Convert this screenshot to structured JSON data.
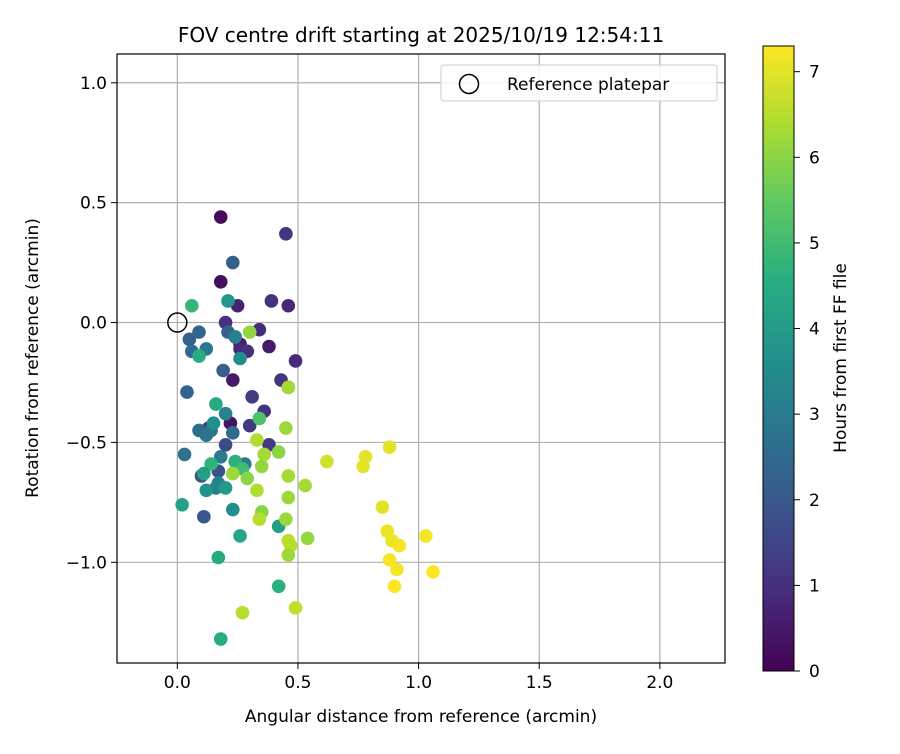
{
  "chart_data": {
    "type": "scatter",
    "title": "FOV centre drift starting at 2025/10/19 12:54:11",
    "xlabel": "Angular distance from reference (arcmin)",
    "ylabel": "Rotation from reference (arcmin)",
    "xlim": [
      -0.25,
      2.27
    ],
    "ylim": [
      -1.42,
      1.12
    ],
    "xticks": [
      0.0,
      0.5,
      1.0,
      1.5,
      2.0
    ],
    "xtick_labels": [
      "0.0",
      "0.5",
      "1.0",
      "1.5",
      "2.0"
    ],
    "yticks": [
      1.0,
      0.5,
      0.0,
      -0.5,
      -1.0
    ],
    "ytick_labels": [
      "1.0",
      "0.5",
      "0.0",
      "−0.5",
      "−1.0"
    ],
    "grid": true,
    "colormap": "viridis",
    "colorbar": {
      "label": "Hours from first FF file",
      "range": [
        0,
        7.3
      ],
      "ticks": [
        0,
        1,
        2,
        3,
        4,
        5,
        6,
        7
      ],
      "tick_labels": [
        "0",
        "1",
        "2",
        "3",
        "4",
        "5",
        "6",
        "7"
      ]
    },
    "legend": {
      "position": "top-right",
      "entries": [
        {
          "label": "Reference platepar",
          "marker": "open-circle"
        }
      ]
    },
    "reference_point": {
      "x": 0.0,
      "y": 0.0
    },
    "points": [
      {
        "x": 0.18,
        "y": 0.44,
        "h": 0.2
      },
      {
        "x": 0.18,
        "y": 0.17,
        "h": 0.3
      },
      {
        "x": 0.22,
        "y": -0.42,
        "h": 0.4
      },
      {
        "x": 0.25,
        "y": 0.07,
        "h": 0.7
      },
      {
        "x": 0.26,
        "y": -0.09,
        "h": 0.6
      },
      {
        "x": 0.23,
        "y": -0.24,
        "h": 0.5
      },
      {
        "x": 0.26,
        "y": -0.11,
        "h": 0.8
      },
      {
        "x": 0.34,
        "y": -0.03,
        "h": 0.9
      },
      {
        "x": 0.38,
        "y": -0.1,
        "h": 0.5
      },
      {
        "x": 0.45,
        "y": 0.37,
        "h": 1.1
      },
      {
        "x": 0.46,
        "y": 0.07,
        "h": 0.8
      },
      {
        "x": 0.39,
        "y": 0.09,
        "h": 1.0
      },
      {
        "x": 0.29,
        "y": -0.12,
        "h": 1.0
      },
      {
        "x": 0.2,
        "y": 0.0,
        "h": 1.0
      },
      {
        "x": 0.49,
        "y": -0.16,
        "h": 0.9
      },
      {
        "x": 0.46,
        "y": -0.27,
        "h": 1.2
      },
      {
        "x": 0.43,
        "y": -0.24,
        "h": 1.1
      },
      {
        "x": 0.36,
        "y": -0.37,
        "h": 1.0
      },
      {
        "x": 0.3,
        "y": -0.43,
        "h": 1.2
      },
      {
        "x": 0.31,
        "y": -0.31,
        "h": 1.3
      },
      {
        "x": 0.38,
        "y": -0.51,
        "h": 1.2
      },
      {
        "x": 0.13,
        "y": -0.44,
        "h": 1.4
      },
      {
        "x": 0.2,
        "y": -0.51,
        "h": 1.6
      },
      {
        "x": 0.1,
        "y": -0.64,
        "h": 1.9
      },
      {
        "x": 0.11,
        "y": -0.81,
        "h": 2.0
      },
      {
        "x": 0.17,
        "y": -0.62,
        "h": 1.8
      },
      {
        "x": 0.23,
        "y": 0.25,
        "h": 2.2
      },
      {
        "x": 0.21,
        "y": -0.04,
        "h": 2.3
      },
      {
        "x": 0.19,
        "y": -0.2,
        "h": 2.2
      },
      {
        "x": 0.05,
        "y": -0.07,
        "h": 2.2
      },
      {
        "x": 0.09,
        "y": -0.04,
        "h": 2.4
      },
      {
        "x": 0.06,
        "y": -0.12,
        "h": 2.5
      },
      {
        "x": 0.04,
        "y": -0.29,
        "h": 2.3
      },
      {
        "x": 0.12,
        "y": -0.11,
        "h": 2.9
      },
      {
        "x": 0.09,
        "y": -0.45,
        "h": 2.6
      },
      {
        "x": 0.14,
        "y": -0.45,
        "h": 2.7
      },
      {
        "x": 0.12,
        "y": -0.47,
        "h": 2.8
      },
      {
        "x": 0.23,
        "y": -0.46,
        "h": 2.5
      },
      {
        "x": 0.03,
        "y": -0.55,
        "h": 2.7
      },
      {
        "x": 0.28,
        "y": -0.59,
        "h": 3.0
      },
      {
        "x": 0.16,
        "y": -0.69,
        "h": 3.1
      },
      {
        "x": 0.2,
        "y": -0.38,
        "h": 3.2
      },
      {
        "x": 0.24,
        "y": -0.06,
        "h": 3.1
      },
      {
        "x": 0.26,
        "y": -0.15,
        "h": 3.5
      },
      {
        "x": 0.15,
        "y": -0.42,
        "h": 3.6
      },
      {
        "x": 0.18,
        "y": -0.56,
        "h": 3.0
      },
      {
        "x": 0.12,
        "y": -0.7,
        "h": 3.7
      },
      {
        "x": 0.17,
        "y": -0.67,
        "h": 3.3
      },
      {
        "x": 0.2,
        "y": -0.69,
        "h": 3.9
      },
      {
        "x": 0.23,
        "y": -0.78,
        "h": 3.6
      },
      {
        "x": 0.21,
        "y": 0.09,
        "h": 3.8
      },
      {
        "x": 0.09,
        "y": -0.14,
        "h": 4.5
      },
      {
        "x": 0.16,
        "y": -0.34,
        "h": 4.4
      },
      {
        "x": 0.14,
        "y": -0.59,
        "h": 4.7
      },
      {
        "x": 0.11,
        "y": -0.63,
        "h": 4.1
      },
      {
        "x": 0.02,
        "y": -0.76,
        "h": 4.2
      },
      {
        "x": 0.06,
        "y": 0.07,
        "h": 4.8
      },
      {
        "x": 0.24,
        "y": -0.58,
        "h": 4.6
      },
      {
        "x": 0.27,
        "y": -0.61,
        "h": 5.0
      },
      {
        "x": 0.26,
        "y": -0.89,
        "h": 4.3
      },
      {
        "x": 0.17,
        "y": -0.98,
        "h": 4.4
      },
      {
        "x": 0.18,
        "y": -1.32,
        "h": 4.5
      },
      {
        "x": 0.42,
        "y": -0.85,
        "h": 4.1
      },
      {
        "x": 0.42,
        "y": -1.1,
        "h": 4.6
      },
      {
        "x": 0.34,
        "y": -0.4,
        "h": 5.2
      },
      {
        "x": 0.3,
        "y": -0.04,
        "h": 6.1
      },
      {
        "x": 0.46,
        "y": -0.27,
        "h": 6.3
      },
      {
        "x": 0.33,
        "y": -0.49,
        "h": 6.4
      },
      {
        "x": 0.45,
        "y": -0.44,
        "h": 6.2
      },
      {
        "x": 0.36,
        "y": -0.55,
        "h": 6.3
      },
      {
        "x": 0.42,
        "y": -0.54,
        "h": 6.0
      },
      {
        "x": 0.35,
        "y": -0.6,
        "h": 6.1
      },
      {
        "x": 0.23,
        "y": -0.63,
        "h": 6.2
      },
      {
        "x": 0.29,
        "y": -0.65,
        "h": 6.0
      },
      {
        "x": 0.46,
        "y": -0.64,
        "h": 6.3
      },
      {
        "x": 0.53,
        "y": -0.68,
        "h": 6.3
      },
      {
        "x": 0.33,
        "y": -0.7,
        "h": 6.4
      },
      {
        "x": 0.46,
        "y": -0.73,
        "h": 6.2
      },
      {
        "x": 0.35,
        "y": -0.79,
        "h": 6.0
      },
      {
        "x": 0.34,
        "y": -0.82,
        "h": 6.5
      },
      {
        "x": 0.45,
        "y": -0.82,
        "h": 6.2
      },
      {
        "x": 0.54,
        "y": -0.9,
        "h": 6.1
      },
      {
        "x": 0.46,
        "y": -0.91,
        "h": 6.6
      },
      {
        "x": 0.47,
        "y": -0.93,
        "h": 6.5
      },
      {
        "x": 0.46,
        "y": -0.97,
        "h": 6.2
      },
      {
        "x": 0.27,
        "y": -1.21,
        "h": 6.5
      },
      {
        "x": 0.49,
        "y": -1.19,
        "h": 6.6
      },
      {
        "x": 0.62,
        "y": -0.58,
        "h": 6.8
      },
      {
        "x": 0.77,
        "y": -0.6,
        "h": 7.0
      },
      {
        "x": 0.78,
        "y": -0.56,
        "h": 7.0
      },
      {
        "x": 0.88,
        "y": -0.52,
        "h": 7.0
      },
      {
        "x": 0.85,
        "y": -0.77,
        "h": 7.0
      },
      {
        "x": 0.87,
        "y": -0.87,
        "h": 7.1
      },
      {
        "x": 0.89,
        "y": -0.91,
        "h": 7.1
      },
      {
        "x": 0.92,
        "y": -0.93,
        "h": 7.2
      },
      {
        "x": 1.03,
        "y": -0.89,
        "h": 7.2
      },
      {
        "x": 0.88,
        "y": -0.99,
        "h": 7.2
      },
      {
        "x": 0.91,
        "y": -1.03,
        "h": 7.2
      },
      {
        "x": 1.06,
        "y": -1.04,
        "h": 7.3
      },
      {
        "x": 0.9,
        "y": -1.1,
        "h": 7.3
      }
    ]
  }
}
